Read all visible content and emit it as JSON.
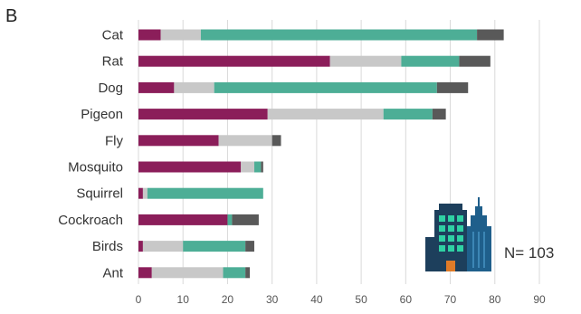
{
  "chart_data": {
    "type": "bar",
    "orientation": "horizontal",
    "stacked": true,
    "panel_label": "B",
    "categories": [
      "Cat",
      "Rat",
      "Dog",
      "Pigeon",
      "Fly",
      "Mosquito",
      "Squirrel",
      "Cockroach",
      "Birds",
      "Ant"
    ],
    "series": [
      {
        "color": "#8B1E5A",
        "values": [
          5,
          43,
          8,
          29,
          18,
          23,
          1,
          20,
          1,
          3
        ]
      },
      {
        "color": "#C8C8C8",
        "values": [
          9,
          16,
          9,
          26,
          12,
          3,
          1,
          0,
          9,
          16
        ]
      },
      {
        "color": "#4DAE96",
        "values": [
          62,
          13,
          50,
          11,
          0,
          1.5,
          26,
          1,
          14,
          5
        ]
      },
      {
        "color": "#595959",
        "values": [
          6,
          7,
          7,
          3,
          2,
          0.5,
          0,
          6,
          2,
          1
        ]
      }
    ],
    "xlim": [
      0,
      90
    ],
    "xticks": [
      0,
      10,
      20,
      30,
      40,
      50,
      60,
      70,
      80,
      90
    ],
    "grid": "vertical",
    "annotation": "N= 103",
    "title": "",
    "xlabel": "",
    "ylabel": ""
  },
  "icon": "city-buildings-icon"
}
